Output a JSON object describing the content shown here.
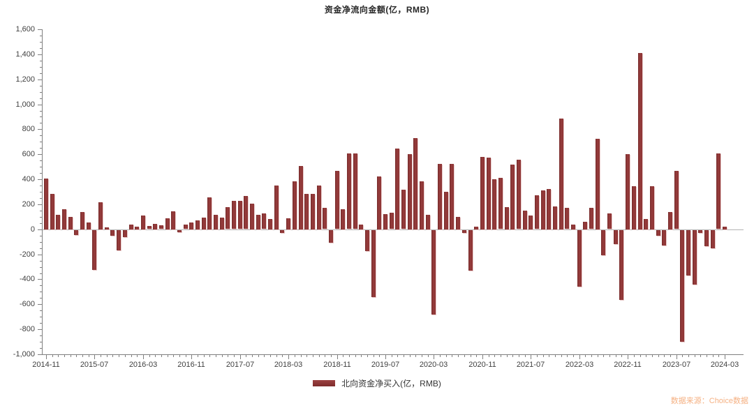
{
  "title": "资金净流向金额(亿，RMB)",
  "legend": {
    "label": "北向资金净买入(亿，RMB)"
  },
  "source_note": "数据来源：Choice数据",
  "colors": {
    "bar": "#8C3434",
    "bar_edge_light": "#E4C1C1",
    "axis": "#7F7F7F",
    "axis_text": "#404040",
    "title_text": "#262626",
    "source_text": "#F5B183"
  },
  "chart_data": {
    "type": "bar",
    "title": "资金净流向金额(亿，RMB)",
    "xlabel": "",
    "ylabel": "",
    "ylim": [
      -1000,
      1600
    ],
    "y_tick_step": 200,
    "y_minor_step": 50,
    "grid": false,
    "legend_position": "bottom",
    "legend_entries": [
      "北向资金净买入(亿，RMB)"
    ],
    "y_tick_labels": [
      "1,600",
      "1,400",
      "1,200",
      "1,000",
      "800",
      "600",
      "400",
      "200",
      "0",
      "-200",
      "-400",
      "-600",
      "-800",
      "-1,000"
    ],
    "x_tick_labels": [
      "2014-11",
      "2015-07",
      "2016-03",
      "2016-11",
      "2017-07",
      "2018-03",
      "2018-11",
      "2019-07",
      "2020-03",
      "2020-11",
      "2021-07",
      "2022-03",
      "2022-11",
      "2023-07",
      "2024-03"
    ],
    "x_tick_every": 8,
    "x": [
      "2014-11",
      "2014-12",
      "2015-01",
      "2015-02",
      "2015-03",
      "2015-04",
      "2015-05",
      "2015-06",
      "2015-07",
      "2015-08",
      "2015-09",
      "2015-10",
      "2015-11",
      "2015-12",
      "2016-01",
      "2016-02",
      "2016-03",
      "2016-04",
      "2016-05",
      "2016-06",
      "2016-07",
      "2016-08",
      "2016-09",
      "2016-10",
      "2016-11",
      "2016-12",
      "2017-01",
      "2017-02",
      "2017-03",
      "2017-04",
      "2017-05",
      "2017-06",
      "2017-07",
      "2017-08",
      "2017-09",
      "2017-10",
      "2017-11",
      "2017-12",
      "2018-01",
      "2018-02",
      "2018-03",
      "2018-04",
      "2018-05",
      "2018-06",
      "2018-07",
      "2018-08",
      "2018-09",
      "2018-10",
      "2018-11",
      "2018-12",
      "2019-01",
      "2019-02",
      "2019-03",
      "2019-04",
      "2019-05",
      "2019-06",
      "2019-07",
      "2019-08",
      "2019-09",
      "2019-10",
      "2019-11",
      "2019-12",
      "2020-01",
      "2020-02",
      "2020-03",
      "2020-04",
      "2020-05",
      "2020-06",
      "2020-07",
      "2020-08",
      "2020-09",
      "2020-10",
      "2020-11",
      "2020-12",
      "2021-01",
      "2021-02",
      "2021-03",
      "2021-04",
      "2021-05",
      "2021-06",
      "2021-07",
      "2021-08",
      "2021-09",
      "2021-10",
      "2021-11",
      "2021-12",
      "2022-01",
      "2022-02",
      "2022-03",
      "2022-04",
      "2022-05",
      "2022-06",
      "2022-07",
      "2022-08",
      "2022-09",
      "2022-10",
      "2022-11",
      "2022-12",
      "2023-01",
      "2023-02",
      "2023-03",
      "2023-04",
      "2023-05",
      "2023-06",
      "2023-07",
      "2023-08",
      "2023-09",
      "2023-10",
      "2023-11",
      "2023-12",
      "2024-01",
      "2024-02",
      "2024-03"
    ],
    "values": [
      405,
      285,
      115,
      160,
      100,
      -40,
      140,
      55,
      -320,
      215,
      15,
      -45,
      -160,
      -55,
      40,
      20,
      110,
      25,
      45,
      30,
      90,
      145,
      -15,
      35,
      55,
      70,
      95,
      255,
      115,
      95,
      175,
      225,
      225,
      265,
      205,
      115,
      125,
      85,
      350,
      -25,
      90,
      385,
      505,
      285,
      285,
      350,
      170,
      -100,
      465,
      160,
      605,
      605,
      40,
      -170,
      -535,
      425,
      120,
      130,
      645,
      315,
      600,
      730,
      385,
      115,
      -675,
      525,
      300,
      525,
      100,
      -25,
      -325,
      20,
      580,
      575,
      400,
      410,
      180,
      520,
      555,
      150,
      110,
      270,
      310,
      325,
      185,
      885,
      170,
      40,
      -450,
      60,
      170,
      725,
      -200,
      125,
      -110,
      -560,
      600,
      345,
      1410,
      85,
      345,
      -45,
      -120,
      140,
      465,
      -895,
      -365,
      -435,
      -20,
      -130,
      -145,
      605,
      20
    ]
  }
}
